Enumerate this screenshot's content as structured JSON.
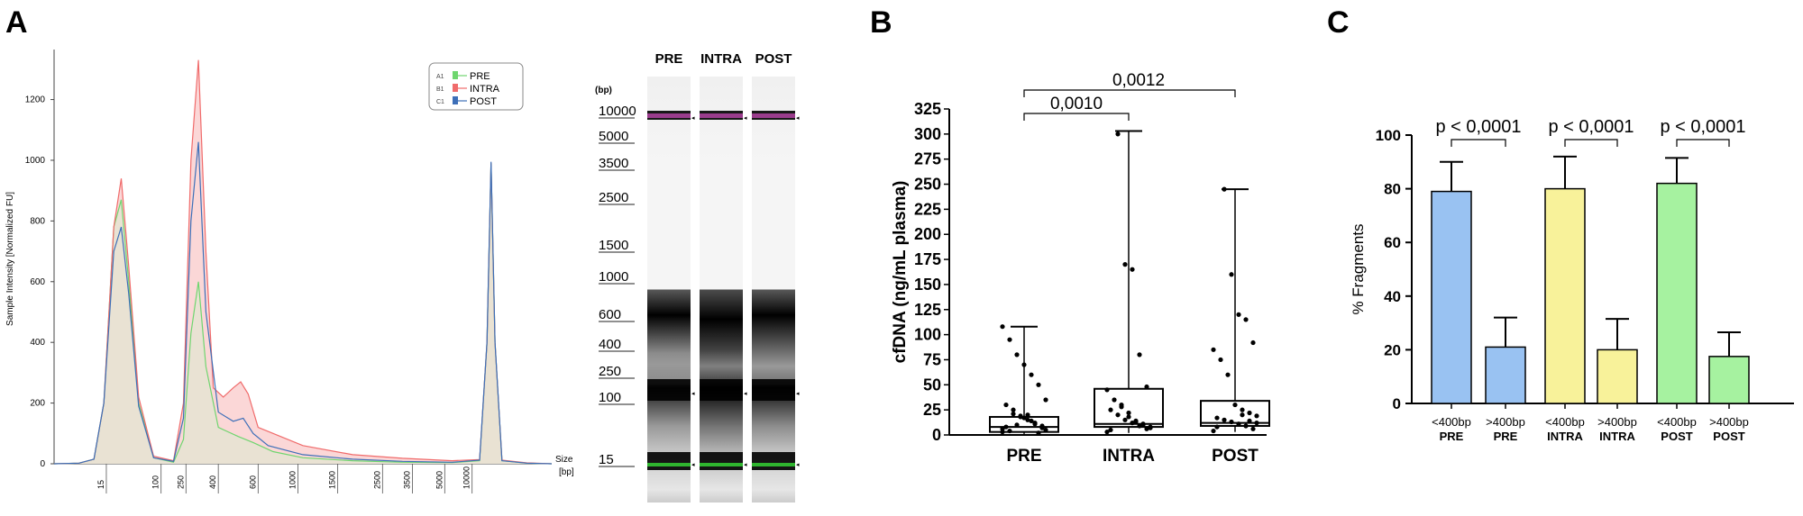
{
  "panels": {
    "a": {
      "letter": "A"
    },
    "b": {
      "letter": "B"
    },
    "c": {
      "letter": "C"
    }
  },
  "chart_data": [
    {
      "id": "A-electropherogram",
      "type": "area",
      "ylabel": "Sample Intensity [Normalized FU]",
      "xlabel": "Size [bp]",
      "xlabel_parts": [
        "Size",
        "[bp]"
      ],
      "yticks": [
        0,
        200,
        400,
        600,
        800,
        1000,
        1200
      ],
      "ylim": [
        0,
        1350
      ],
      "xticks": [
        "15",
        "100",
        "250",
        "400",
        "600",
        "1000",
        "1500",
        "2500",
        "3500",
        "5000",
        "10000"
      ],
      "legend": [
        {
          "well": "A1",
          "name": "PRE",
          "color": "#6fd66f"
        },
        {
          "well": "B1",
          "name": "INTRA",
          "color": "#f06b6b"
        },
        {
          "well": "C1",
          "name": "POST",
          "color": "#3d6fb8"
        }
      ],
      "fill_color": "#e9e2d3",
      "series": [
        {
          "name": "PRE",
          "points": [
            [
              0,
              0
            ],
            [
              0.05,
              2
            ],
            [
              0.08,
              15
            ],
            [
              0.1,
              200
            ],
            [
              0.12,
              780
            ],
            [
              0.135,
              870
            ],
            [
              0.15,
              600
            ],
            [
              0.17,
              200
            ],
            [
              0.2,
              20
            ],
            [
              0.24,
              5
            ],
            [
              0.26,
              80
            ],
            [
              0.275,
              430
            ],
            [
              0.29,
              600
            ],
            [
              0.305,
              320
            ],
            [
              0.33,
              120
            ],
            [
              0.37,
              90
            ],
            [
              0.4,
              70
            ],
            [
              0.44,
              40
            ],
            [
              0.5,
              20
            ],
            [
              0.6,
              10
            ],
            [
              0.7,
              5
            ],
            [
              0.8,
              4
            ],
            [
              0.855,
              10
            ],
            [
              0.87,
              400
            ],
            [
              0.878,
              990
            ],
            [
              0.886,
              400
            ],
            [
              0.9,
              10
            ],
            [
              0.95,
              2
            ],
            [
              1,
              0
            ]
          ]
        },
        {
          "name": "INTRA",
          "points": [
            [
              0,
              0
            ],
            [
              0.05,
              2
            ],
            [
              0.08,
              15
            ],
            [
              0.1,
              200
            ],
            [
              0.12,
              780
            ],
            [
              0.135,
              940
            ],
            [
              0.15,
              650
            ],
            [
              0.17,
              220
            ],
            [
              0.2,
              25
            ],
            [
              0.24,
              10
            ],
            [
              0.26,
              200
            ],
            [
              0.275,
              1000
            ],
            [
              0.29,
              1330
            ],
            [
              0.305,
              700
            ],
            [
              0.32,
              250
            ],
            [
              0.34,
              220
            ],
            [
              0.36,
              250
            ],
            [
              0.375,
              270
            ],
            [
              0.39,
              230
            ],
            [
              0.41,
              120
            ],
            [
              0.44,
              100
            ],
            [
              0.5,
              60
            ],
            [
              0.6,
              30
            ],
            [
              0.7,
              18
            ],
            [
              0.8,
              10
            ],
            [
              0.855,
              14
            ],
            [
              0.87,
              400
            ],
            [
              0.878,
              990
            ],
            [
              0.886,
              400
            ],
            [
              0.9,
              12
            ],
            [
              0.95,
              3
            ],
            [
              1,
              0
            ]
          ]
        },
        {
          "name": "POST",
          "points": [
            [
              0,
              0
            ],
            [
              0.05,
              2
            ],
            [
              0.08,
              15
            ],
            [
              0.1,
              200
            ],
            [
              0.12,
              700
            ],
            [
              0.135,
              780
            ],
            [
              0.15,
              560
            ],
            [
              0.17,
              190
            ],
            [
              0.2,
              20
            ],
            [
              0.24,
              8
            ],
            [
              0.26,
              150
            ],
            [
              0.275,
              800
            ],
            [
              0.29,
              1060
            ],
            [
              0.305,
              500
            ],
            [
              0.33,
              170
            ],
            [
              0.36,
              140
            ],
            [
              0.38,
              150
            ],
            [
              0.4,
              100
            ],
            [
              0.43,
              60
            ],
            [
              0.5,
              30
            ],
            [
              0.6,
              15
            ],
            [
              0.7,
              8
            ],
            [
              0.8,
              5
            ],
            [
              0.855,
              12
            ],
            [
              0.87,
              400
            ],
            [
              0.878,
              995
            ],
            [
              0.886,
              400
            ],
            [
              0.9,
              10
            ],
            [
              0.95,
              2
            ],
            [
              1,
              0
            ]
          ]
        }
      ]
    },
    {
      "id": "A-gel",
      "type": "heatmap",
      "unit_label": "(bp)",
      "ladder": [
        "10000",
        "5000",
        "3500",
        "2500",
        "1500",
        "1000",
        "600",
        "400",
        "250",
        "100",
        "15"
      ],
      "lanes": [
        "PRE",
        "INTRA",
        "POST"
      ],
      "marker_colors": {
        "upper": "#9a3c8c",
        "lower": "#2fb52f"
      }
    },
    {
      "id": "B-boxplot",
      "type": "scatter",
      "ylabel": "cfDNA (ng/mL plasma)",
      "ylim": [
        0,
        325
      ],
      "yticks": [
        0,
        25,
        50,
        75,
        100,
        125,
        150,
        175,
        200,
        225,
        250,
        275,
        300,
        325
      ],
      "categories": [
        "PRE",
        "INTRA",
        "POST"
      ],
      "boxes": [
        {
          "name": "PRE",
          "min": 1,
          "q1": 3,
          "median": 8,
          "q3": 18,
          "max": 108
        },
        {
          "name": "INTRA",
          "min": 2,
          "q1": 8,
          "median": 11,
          "q3": 46,
          "max": 303
        },
        {
          "name": "POST",
          "min": 3,
          "q1": 9,
          "median": 12,
          "q3": 34,
          "max": 245
        }
      ],
      "points": [
        [
          3,
          7,
          11,
          15,
          19,
          21,
          8,
          5,
          2,
          14,
          17,
          10,
          4,
          6,
          9,
          12,
          20,
          18,
          25,
          30,
          35,
          50,
          60,
          70,
          80,
          95,
          108
        ],
        [
          3,
          6,
          9,
          12,
          15,
          20,
          25,
          8,
          10,
          14,
          18,
          30,
          35,
          45,
          48,
          80,
          165,
          170,
          300,
          5,
          7,
          11,
          13,
          22,
          28
        ],
        [
          4,
          6,
          9,
          11,
          13,
          15,
          17,
          19,
          22,
          25,
          30,
          60,
          75,
          85,
          92,
          115,
          120,
          160,
          245,
          8,
          12,
          14,
          20
        ]
      ],
      "significance": [
        {
          "label": "0,0010",
          "from": "PRE",
          "to": "INTRA"
        },
        {
          "label": "0,0012",
          "from": "PRE",
          "to": "POST"
        }
      ]
    },
    {
      "id": "C-bar",
      "type": "bar",
      "ylabel": "% Fragments",
      "ylim": [
        0,
        100
      ],
      "yticks": [
        0,
        20,
        40,
        60,
        80,
        100
      ],
      "categories": [
        {
          "size": "<400bp",
          "group": "PRE"
        },
        {
          "size": ">400bp",
          "group": "PRE"
        },
        {
          "size": "<400bp",
          "group": "INTRA"
        },
        {
          "size": ">400bp",
          "group": "INTRA"
        },
        {
          "size": "<400bp",
          "group": "POST"
        },
        {
          "size": ">400bp",
          "group": "POST"
        }
      ],
      "values": [
        79,
        21,
        80,
        20,
        82,
        17.5
      ],
      "errors": [
        11,
        11,
        12,
        11.5,
        9.5,
        9
      ],
      "colors": [
        "#99c2f2",
        "#99c2f2",
        "#f8f29a",
        "#f8f29a",
        "#a6f2a0",
        "#a6f2a0"
      ],
      "significance": [
        "p < 0,0001",
        "p < 0,0001",
        "p < 0,0001"
      ]
    }
  ]
}
